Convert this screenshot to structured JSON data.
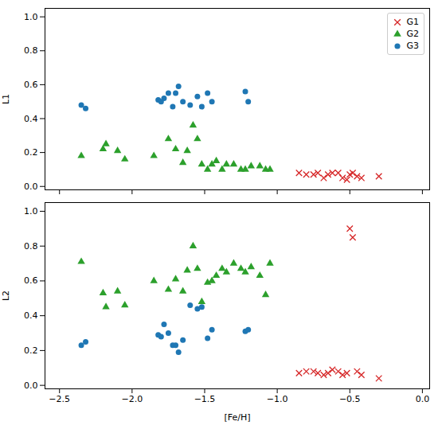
{
  "chart_data": [
    {
      "type": "scatter",
      "ylabel": "L1",
      "xlim": [
        -2.6,
        0.05
      ],
      "ylim": [
        -0.02,
        1.05
      ],
      "xticks": [
        -2.5,
        {
          "value": -2.0,
          "label": "−2.0"
        },
        -1.5,
        {
          "value": -1.0,
          "label": "−1.0"
        },
        -0.5,
        {
          "value": 0.0,
          "label": "0.0"
        }
      ],
      "yticks": [
        {
          "value": 0.0,
          "label": "0.0"
        },
        0.2,
        0.4,
        0.6,
        0.8,
        {
          "value": 1.0,
          "label": "1.0"
        }
      ],
      "tick_labels": "y",
      "legend": "upper right",
      "series": [
        {
          "name": "G1",
          "color": "#d62728",
          "marker": "x",
          "x": [
            -0.85,
            -0.8,
            -0.75,
            -0.72,
            -0.68,
            -0.65,
            -0.62,
            -0.58,
            -0.55,
            -0.52,
            -0.5,
            -0.48,
            -0.45,
            -0.42,
            -0.3
          ],
          "values": [
            0.08,
            0.07,
            0.07,
            0.08,
            0.05,
            0.07,
            0.08,
            0.08,
            0.05,
            0.04,
            0.07,
            0.08,
            0.06,
            0.05,
            0.06
          ]
        },
        {
          "name": "G2",
          "color": "#2ca02c",
          "marker": "triangle",
          "x": [
            -2.35,
            -2.2,
            -2.18,
            -2.1,
            -2.05,
            -1.85,
            -1.75,
            -1.7,
            -1.65,
            -1.62,
            -1.58,
            -1.55,
            -1.52,
            -1.48,
            -1.45,
            -1.42,
            -1.38,
            -1.35,
            -1.3,
            -1.25,
            -1.22,
            -1.18,
            -1.12,
            -1.08,
            -1.05
          ],
          "values": [
            0.18,
            0.22,
            0.25,
            0.21,
            0.16,
            0.18,
            0.28,
            0.22,
            0.14,
            0.21,
            0.36,
            0.28,
            0.13,
            0.1,
            0.13,
            0.15,
            0.1,
            0.13,
            0.13,
            0.1,
            0.1,
            0.12,
            0.12,
            0.1,
            0.1
          ]
        },
        {
          "name": "G3",
          "color": "#1f77b4",
          "marker": "circle",
          "x": [
            -2.35,
            -2.32,
            -1.82,
            -1.8,
            -1.78,
            -1.75,
            -1.72,
            -1.7,
            -1.68,
            -1.65,
            -1.6,
            -1.55,
            -1.52,
            -1.48,
            -1.45,
            -1.22,
            -1.2
          ],
          "values": [
            0.48,
            0.46,
            0.51,
            0.5,
            0.52,
            0.55,
            0.47,
            0.55,
            0.59,
            0.5,
            0.48,
            0.53,
            0.47,
            0.55,
            0.5,
            0.56,
            0.5
          ]
        }
      ]
    },
    {
      "type": "scatter",
      "xlabel": "[Fe/H]",
      "ylabel": "L2",
      "xlim": [
        -2.6,
        0.05
      ],
      "ylim": [
        -0.02,
        1.05
      ],
      "xticks": [
        -2.5,
        {
          "value": -2.0,
          "label": "−2.0"
        },
        -1.5,
        {
          "value": -1.0,
          "label": "−1.0"
        },
        -0.5,
        {
          "value": 0.0,
          "label": "0.0"
        }
      ],
      "yticks": [
        {
          "value": 0.0,
          "label": "0.0"
        },
        0.2,
        0.4,
        0.6,
        0.8,
        {
          "value": 1.0,
          "label": "1.0"
        }
      ],
      "series": [
        {
          "name": "G1",
          "color": "#d62728",
          "marker": "x",
          "x": [
            -0.85,
            -0.8,
            -0.75,
            -0.72,
            -0.68,
            -0.65,
            -0.62,
            -0.58,
            -0.55,
            -0.52,
            -0.5,
            -0.48,
            -0.45,
            -0.42,
            -0.3
          ],
          "values": [
            0.07,
            0.08,
            0.08,
            0.07,
            0.06,
            0.07,
            0.09,
            0.08,
            0.06,
            0.07,
            0.9,
            0.85,
            0.08,
            0.06,
            0.04
          ]
        },
        {
          "name": "G2",
          "color": "#2ca02c",
          "marker": "triangle",
          "x": [
            -2.35,
            -2.2,
            -2.18,
            -2.1,
            -2.05,
            -1.85,
            -1.75,
            -1.7,
            -1.65,
            -1.62,
            -1.58,
            -1.55,
            -1.52,
            -1.48,
            -1.45,
            -1.42,
            -1.38,
            -1.35,
            -1.3,
            -1.25,
            -1.22,
            -1.18,
            -1.12,
            -1.08,
            -1.05
          ],
          "values": [
            0.71,
            0.53,
            0.45,
            0.54,
            0.46,
            0.6,
            0.55,
            0.61,
            0.54,
            0.66,
            0.8,
            0.67,
            0.48,
            0.59,
            0.6,
            0.63,
            0.67,
            0.65,
            0.7,
            0.67,
            0.65,
            0.68,
            0.63,
            0.52,
            0.7
          ]
        },
        {
          "name": "G3",
          "color": "#1f77b4",
          "marker": "circle",
          "x": [
            -2.35,
            -2.32,
            -1.82,
            -1.8,
            -1.78,
            -1.75,
            -1.72,
            -1.7,
            -1.68,
            -1.65,
            -1.6,
            -1.55,
            -1.52,
            -1.48,
            -1.45,
            -1.22,
            -1.2
          ],
          "values": [
            0.23,
            0.25,
            0.29,
            0.28,
            0.35,
            0.3,
            0.23,
            0.23,
            0.19,
            0.26,
            0.46,
            0.44,
            0.45,
            0.27,
            0.32,
            0.31,
            0.32
          ]
        }
      ]
    }
  ]
}
